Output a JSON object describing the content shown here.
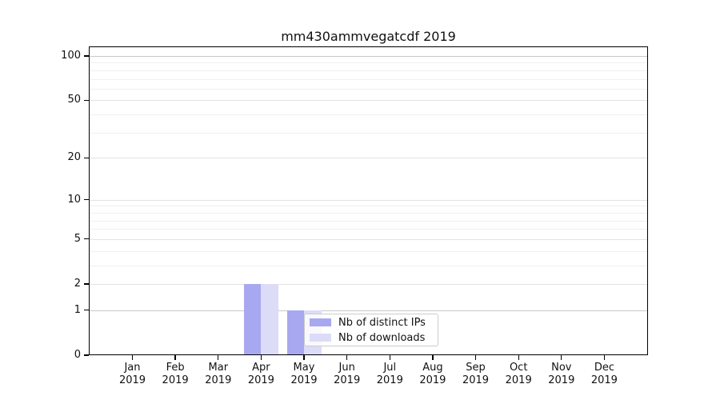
{
  "chart_data": {
    "type": "bar",
    "title": "mm430ammvegatcdf 2019",
    "x_categories": [
      "Jan",
      "Feb",
      "Mar",
      "Apr",
      "May",
      "Jun",
      "Jul",
      "Aug",
      "Sep",
      "Oct",
      "Nov",
      "Dec"
    ],
    "x_year_label": "2019",
    "series": [
      {
        "name": "Nb of distinct IPs",
        "color": "#a8a8f0",
        "values": [
          0,
          0,
          0,
          2,
          1,
          0,
          0,
          0,
          0,
          0,
          0,
          0
        ]
      },
      {
        "name": "Nb of downloads",
        "color": "#dcdcf8",
        "values": [
          0,
          0,
          0,
          2,
          1,
          0,
          0,
          0,
          0,
          0,
          0,
          0
        ]
      }
    ],
    "yscale": "log1p",
    "ylim": [
      0,
      117
    ],
    "yticks": [
      0,
      1,
      2,
      5,
      10,
      20,
      50,
      100
    ],
    "yticks_minor": [
      3,
      4,
      6,
      7,
      8,
      9,
      30,
      40,
      60,
      70,
      80,
      90
    ],
    "grid": true,
    "grid_color_minor": "#f0f0f0",
    "grid_color_major": "#e3e3e3",
    "grid_color_emphasis": "#c9c9c9",
    "legend_position": "inside-lower-center"
  }
}
